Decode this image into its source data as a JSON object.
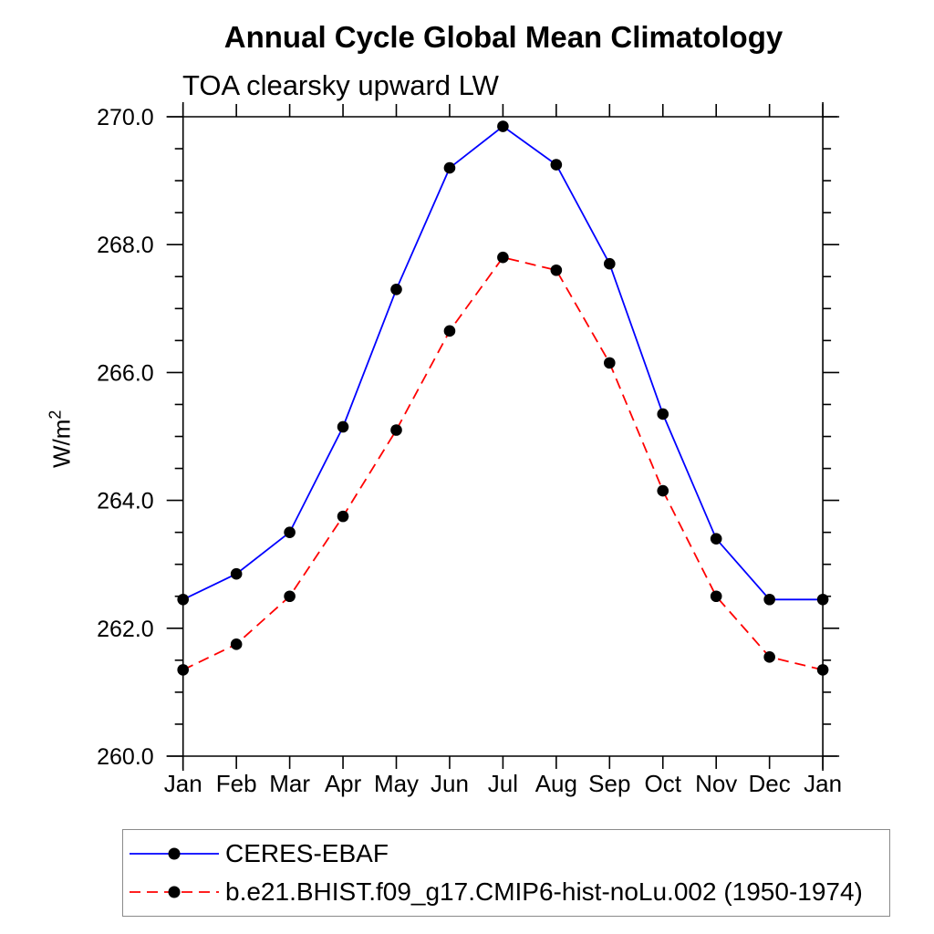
{
  "page": {
    "background": "#ffffff",
    "text_color": "#000000"
  },
  "chart_data": {
    "type": "line",
    "title": "Annual Cycle Global Mean Climatology",
    "subtitle": "TOA clearsky upward LW",
    "ylabel": "W/m",
    "ylabel_superscript": "2",
    "categories": [
      "Jan",
      "Feb",
      "Mar",
      "Apr",
      "May",
      "Jun",
      "Jul",
      "Aug",
      "Sep",
      "Oct",
      "Nov",
      "Dec",
      "Jan"
    ],
    "ylim": [
      260.0,
      270.0
    ],
    "ytick_labels": [
      "260.0",
      "262.0",
      "264.0",
      "266.0",
      "268.0",
      "270.0"
    ],
    "ytick_values": [
      260.0,
      262.0,
      264.0,
      266.0,
      268.0,
      270.0
    ],
    "minor_tick_step": 0.5,
    "grid": false,
    "axis_color": "#000000",
    "legend_position": "bottom-left",
    "series": [
      {
        "name": "CERES-EBAF",
        "color": "#0000ff",
        "line_style": "solid",
        "marker": "filled-circle",
        "marker_color": "#000000",
        "values": [
          262.45,
          262.85,
          263.5,
          265.15,
          267.3,
          269.2,
          269.85,
          269.25,
          267.7,
          265.35,
          263.4,
          262.45,
          262.45
        ]
      },
      {
        "name": "b.e21.BHIST.f09_g17.CMIP6-hist-noLu.002 (1950-1974)",
        "color": "#ff0000",
        "line_style": "dashed",
        "marker": "filled-circle",
        "marker_color": "#000000",
        "values": [
          261.35,
          261.75,
          262.5,
          263.75,
          265.1,
          266.65,
          267.8,
          267.6,
          266.15,
          264.15,
          262.5,
          261.55,
          261.35
        ]
      }
    ]
  }
}
